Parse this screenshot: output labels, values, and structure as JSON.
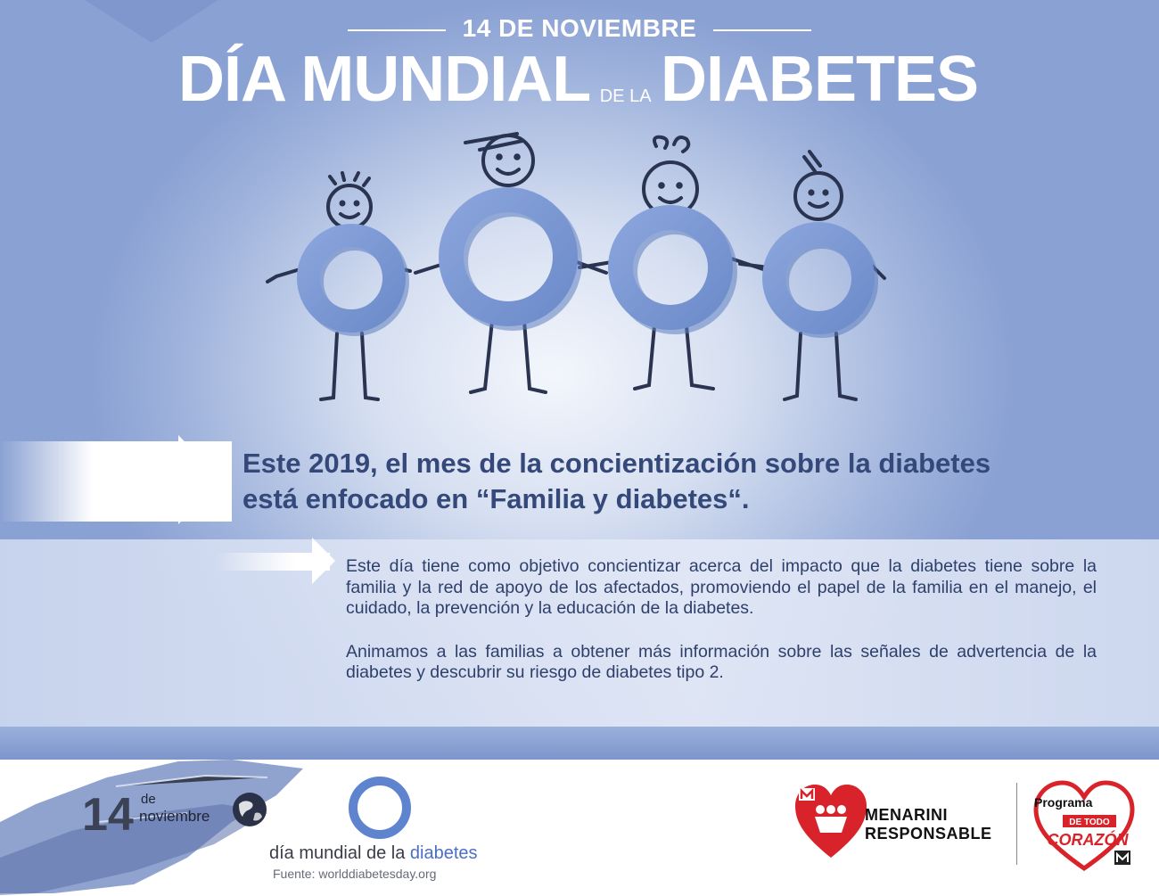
{
  "header": {
    "date": "14 DE NOVIEMBRE",
    "title_part1": "DÍA MUNDIAL",
    "title_connector": "DE LA",
    "title_part2": "DIABETES"
  },
  "headline": {
    "line1": "Este  2019, el mes de la concientización sobre la diabetes",
    "line2": "está enfocado en “Familia y diabetes“."
  },
  "body": {
    "paragraph1": "Este día tiene como objetivo concientizar acerca del impacto que la diabetes tiene sobre la familia y la red de apoyo de los afectados, promoviendo el papel de la familia en el manejo, el cuidado, la prevención y la educación de la diabetes.",
    "paragraph2": "Animamos a las familias a obtener más información sobre las señales de advertencia de la diabetes y descubrir su riesgo de diabetes tipo 2."
  },
  "footer": {
    "day_number": "14",
    "day_de": "de",
    "day_month": "noviembre",
    "wdd_text_prefix": "día mundial de la ",
    "wdd_text_highlight": "diabetes",
    "source": "Fuente: worlddiabetesday.org",
    "menarini_line1": "MENARINI",
    "menarini_line2": "RESPONSABLE",
    "program_line1": "Programa",
    "program_line2": "DE TODO",
    "program_line3": "CORAZÓN"
  },
  "colors": {
    "accent_blue": "#7b97d1",
    "text_dark_blue": "#34497a",
    "heart_red": "#d8232a"
  }
}
